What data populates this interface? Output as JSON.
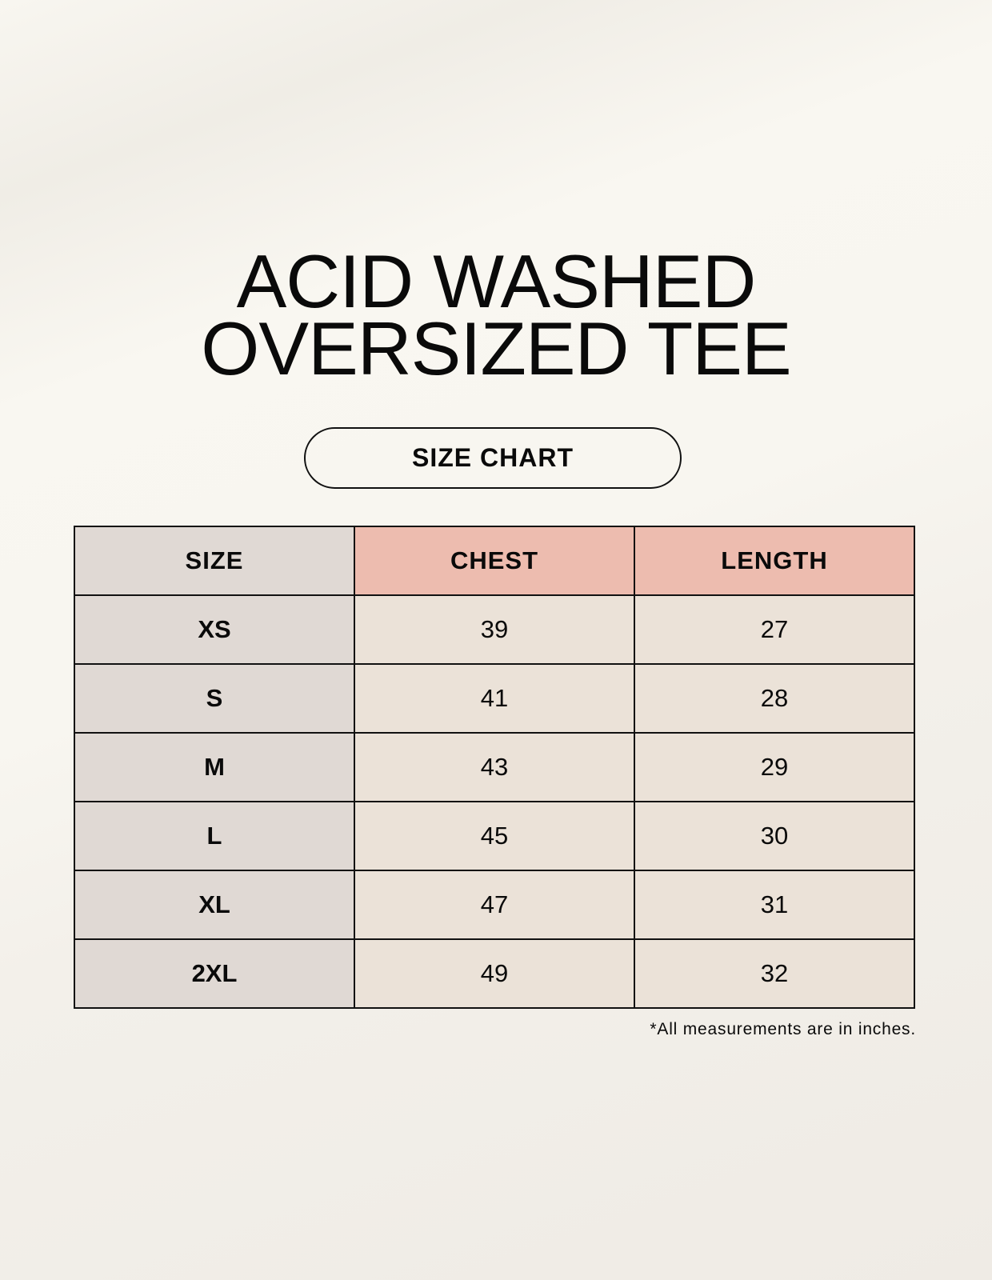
{
  "title": {
    "line1": "ACID WASHED",
    "line2": "OVERSIZED TEE"
  },
  "badge": "SIZE CHART",
  "table": {
    "headers": [
      "SIZE",
      "CHEST",
      "LENGTH"
    ],
    "rows": [
      [
        "XS",
        "39",
        "27"
      ],
      [
        "S",
        "41",
        "28"
      ],
      [
        "M",
        "43",
        "29"
      ],
      [
        "L",
        "45",
        "30"
      ],
      [
        "XL",
        "47",
        "31"
      ],
      [
        "2XL",
        "49",
        "32"
      ]
    ]
  },
  "footnote": "*All measurements are in inches.",
  "colors": {
    "size_column": "#e0d9d4",
    "header_accent": "#edbcaf",
    "cell": "#ebe2d8"
  }
}
